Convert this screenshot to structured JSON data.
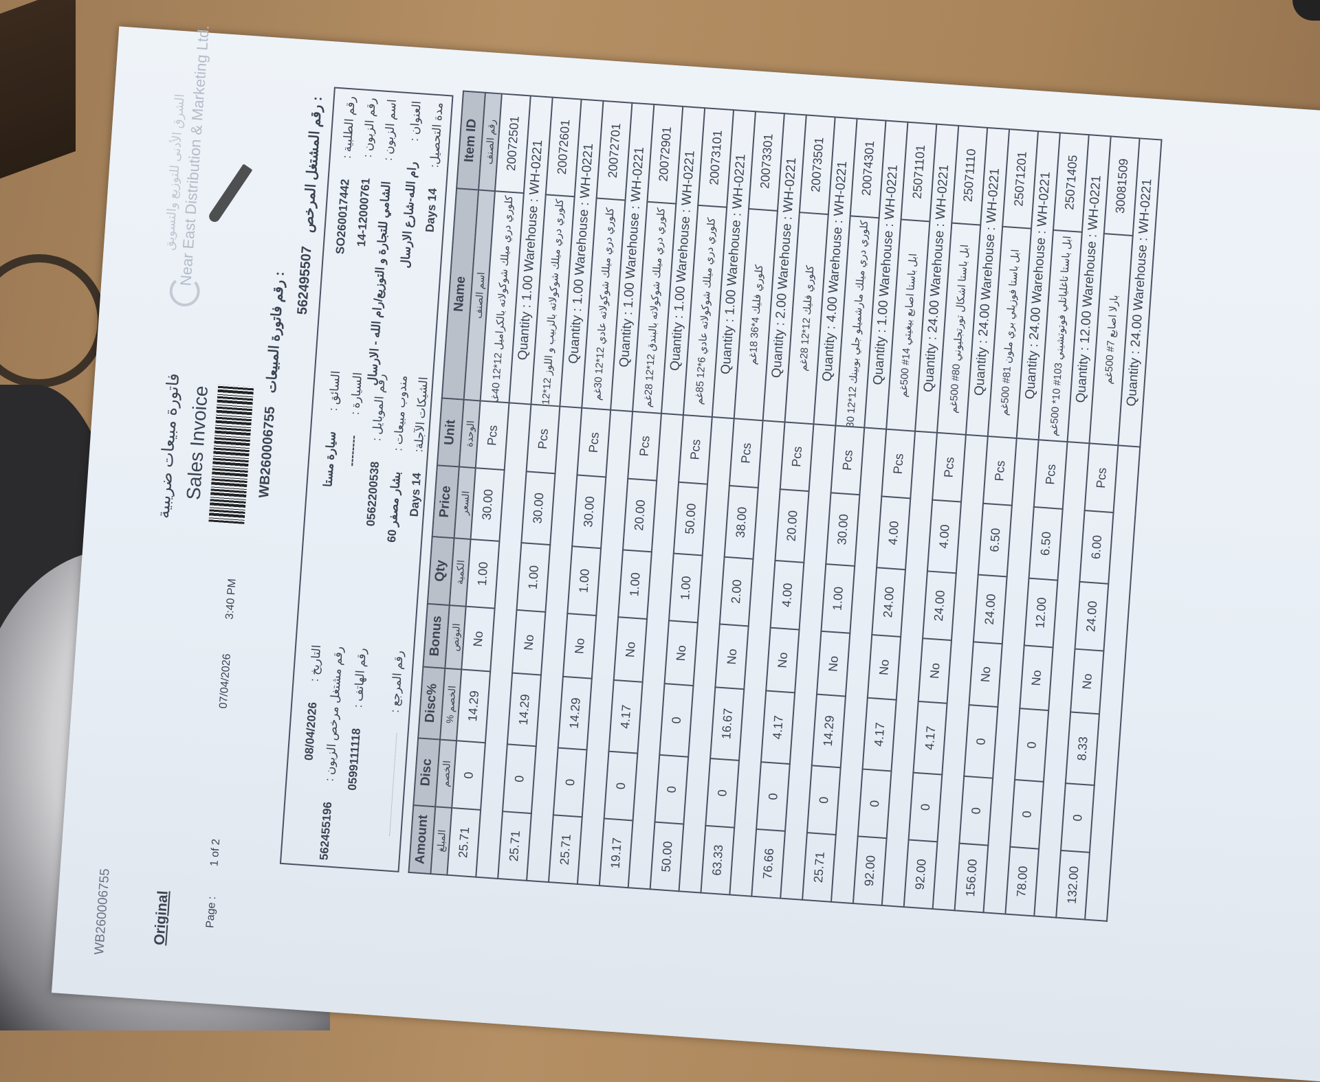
{
  "document": {
    "doc_number": "WB260006755",
    "copy_label": "Original",
    "page_label": "Page :",
    "page_value": "1 of 2",
    "print_date": "07/04/2026",
    "print_time": "3:40 PM",
    "title_ar": "فاتورة مبيعات ضريبية",
    "title_en": "Sales Invoice",
    "invoice_number_label": "رقم فاتورة المبيعات :",
    "invoice_number": "WB260006755",
    "licensed_dealer_label": "رقم المشتغل المرخص :",
    "licensed_dealer_number": "562495507",
    "company_en": "Near East Distribution & Marketing Ltd.",
    "company_ar": "الشرق الأدنى للتوزيع والتسويق"
  },
  "fields": {
    "left": [
      {
        "label": "التاريخ :",
        "value": "08/04/2026"
      },
      {
        "label": "رقم مشتغل مرخص الزبون :",
        "value": "562455196"
      },
      {
        "label": "رقم الهاتف :",
        "value": "0599111118"
      },
      {
        "label": "رقم المرجع :",
        "value": ""
      }
    ],
    "middle": [
      {
        "label": "السائق :",
        "value": "سيارة مستا"
      },
      {
        "label": "السيارة :",
        "value": "--------"
      },
      {
        "label": "رقم الموبايل :",
        "value": "0562200538"
      },
      {
        "label": "مندوب مبيعات :",
        "value": "بشار مصفر 60"
      },
      {
        "label": "الشيكات الآجلة:",
        "value": "14 Days"
      }
    ],
    "right": [
      {
        "label": "رقم الطلبية :",
        "value": "SO260017442"
      },
      {
        "label": "رقم الزبون :",
        "value": "12000761-14"
      },
      {
        "label": "اسم الزبون :",
        "value": "الشامي للتجارة و التوزيع/رام الله - الارسال"
      },
      {
        "label": "العنوان :",
        "value": "رام الله-شارع الارسال"
      },
      {
        "label": "مدة التحصيل:",
        "value": "14 Days"
      }
    ]
  },
  "table": {
    "columns": [
      {
        "en": "Amount",
        "ar": "المبلغ"
      },
      {
        "en": "Disc",
        "ar": "الخصم"
      },
      {
        "en": "Disc%",
        "ar": "% الخصم"
      },
      {
        "en": "Bonus",
        "ar": "البونص"
      },
      {
        "en": "Qty",
        "ar": "الكمية"
      },
      {
        "en": "Price",
        "ar": "السعر"
      },
      {
        "en": "Unit",
        "ar": "الوحدة"
      },
      {
        "en": "Name",
        "ar": "اسم الصنف"
      },
      {
        "en": "Item ID",
        "ar": "رقم الصنف"
      }
    ],
    "rows": [
      {
        "amount": "25.71",
        "disc": "0",
        "disc_pct": "14.29",
        "bonus": "No",
        "qty": "1.00",
        "price": "30.00",
        "unit": "Pcs",
        "name": "كلوري دري ميلك شوكولاته بالكراميل 12*12 40غم",
        "item_id": "20072501",
        "quantity_line": "Quantity : 1.00  Warehouse : WH-0221"
      },
      {
        "amount": "25.71",
        "disc": "0",
        "disc_pct": "14.29",
        "bonus": "No",
        "qty": "1.00",
        "price": "30.00",
        "unit": "Pcs",
        "name": "كلوري دري ميلك شوكولاته بالزبيب و اللوز 12*12 30غم",
        "item_id": "20072601",
        "quantity_line": "Quantity : 1.00  Warehouse : WH-0221"
      },
      {
        "amount": "25.71",
        "disc": "0",
        "disc_pct": "14.29",
        "bonus": "No",
        "qty": "1.00",
        "price": "30.00",
        "unit": "Pcs",
        "name": "كلوري دري ميلك شوكولاته عادي 12*12 30غم",
        "item_id": "20072701",
        "quantity_line": "Quantity : 1.00  Warehouse : WH-0221"
      },
      {
        "amount": "19.17",
        "disc": "0",
        "disc_pct": "4.17",
        "bonus": "No",
        "qty": "1.00",
        "price": "20.00",
        "unit": "Pcs",
        "name": "كلوري دري ميلك شوكولاته بالبندق 12*12 28غم",
        "item_id": "20072901",
        "quantity_line": "Quantity : 1.00  Warehouse : WH-0221"
      },
      {
        "amount": "50.00",
        "disc": "0",
        "disc_pct": "0",
        "bonus": "No",
        "qty": "1.00",
        "price": "50.00",
        "unit": "Pcs",
        "name": "كلوري دري ميلك شوكولاته عادي 6*12 85غم",
        "item_id": "20073101",
        "quantity_line": "Quantity : 1.00  Warehouse : WH-0221"
      },
      {
        "amount": "63.33",
        "disc": "0",
        "disc_pct": "16.67",
        "bonus": "No",
        "qty": "2.00",
        "price": "38.00",
        "unit": "Pcs",
        "name": "كلوري فليك 4*36 18غم",
        "item_id": "20073301",
        "quantity_line": "Quantity : 2.00  Warehouse : WH-0221"
      },
      {
        "amount": "76.66",
        "disc": "0",
        "disc_pct": "4.17",
        "bonus": "No",
        "qty": "4.00",
        "price": "20.00",
        "unit": "Pcs",
        "name": "كلوري فليك 12*12 28غم",
        "item_id": "20073501",
        "quantity_line": "Quantity : 4.00  Warehouse : WH-0221"
      },
      {
        "amount": "25.71",
        "disc": "0",
        "disc_pct": "14.29",
        "bonus": "No",
        "qty": "1.00",
        "price": "30.00",
        "unit": "Pcs",
        "name": "كلوري دري ميلك مارشميلو جلي بوبينك 12*12 30غم",
        "item_id": "20074301",
        "quantity_line": "Quantity : 1.00  Warehouse : WH-0221"
      },
      {
        "amount": "92.00",
        "disc": "0",
        "disc_pct": "4.17",
        "bonus": "No",
        "qty": "24.00",
        "price": "4.00",
        "unit": "Pcs",
        "name": "ابل باستا اصابع بيغيتي 14# 500غم",
        "item_id": "25071101",
        "quantity_line": "Quantity : 24.00  Warehouse : WH-0221"
      },
      {
        "amount": "92.00",
        "disc": "0",
        "disc_pct": "4.17",
        "bonus": "No",
        "qty": "24.00",
        "price": "4.00",
        "unit": "Pcs",
        "name": "ابل باستا اشكال تورتجليوني 80# 500غم",
        "item_id": "25071110",
        "quantity_line": "Quantity : 24.00  Warehouse : WH-0221"
      },
      {
        "amount": "156.00",
        "disc": "0",
        "disc_pct": "0",
        "bonus": "No",
        "qty": "24.00",
        "price": "6.50",
        "unit": "Pcs",
        "name": "ابل باستا فوزيلي بري ملون 81# 500غم",
        "item_id": "25071201",
        "quantity_line": "Quantity : 24.00  Warehouse : WH-0221"
      },
      {
        "amount": "78.00",
        "disc": "0",
        "disc_pct": "0",
        "bonus": "No",
        "qty": "12.00",
        "price": "6.50",
        "unit": "Pcs",
        "name": "ابل باستا تاغلياتلي فوتوتشيني 103# 10* 500غم",
        "item_id": "25071405",
        "quantity_line": "Quantity : 12.00  Warehouse : WH-0221"
      },
      {
        "amount": "132.00",
        "disc": "0",
        "disc_pct": "8.33",
        "bonus": "No",
        "qty": "24.00",
        "price": "6.00",
        "unit": "Pcs",
        "name": "بارلا اصابع 7# 500غم",
        "item_id": "30081509",
        "quantity_line": "Quantity : 24.00  Warehouse : WH-0221"
      }
    ]
  }
}
